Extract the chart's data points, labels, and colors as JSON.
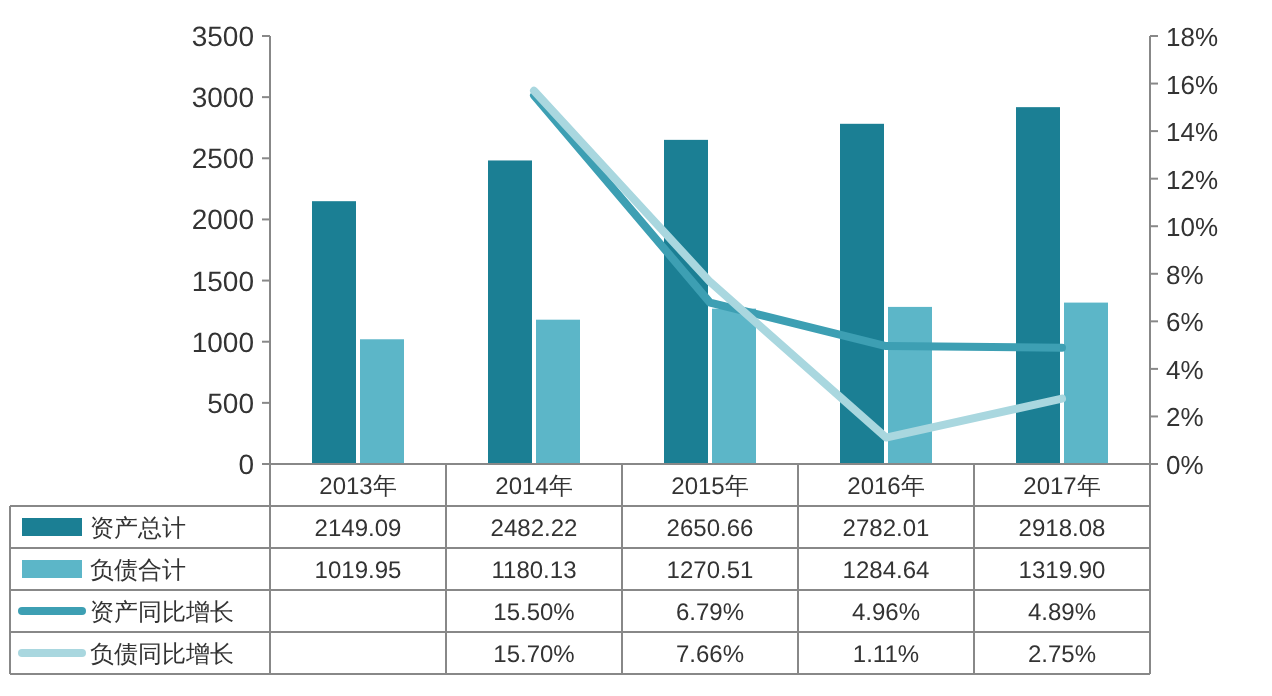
{
  "chart_data": {
    "type": "bar",
    "categories": [
      "2013年",
      "2014年",
      "2015年",
      "2016年",
      "2017年"
    ],
    "series": [
      {
        "name": "资产总计",
        "color": "#1b7f94",
        "values": [
          2149.09,
          2482.22,
          2650.66,
          2782.01,
          2918.08
        ],
        "value_labels": [
          "2149.09",
          "2482.22",
          "2650.66",
          "2782.01",
          "2918.08"
        ]
      },
      {
        "name": "负债合计",
        "color": "#5cb6c8",
        "values": [
          1019.95,
          1180.13,
          1270.51,
          1284.64,
          1319.9
        ],
        "value_labels": [
          "1019.95",
          "1180.13",
          "1270.51",
          "1284.64",
          "1319.90"
        ]
      },
      {
        "name": "资产同比增长",
        "type": "line",
        "axis": "y2",
        "color": "#3d9fb3",
        "values": [
          null,
          15.5,
          6.79,
          4.96,
          4.89
        ],
        "value_labels": [
          null,
          "15.50%",
          "6.79%",
          "4.96%",
          "4.89%"
        ]
      },
      {
        "name": "负债同比增长",
        "type": "line",
        "axis": "y2",
        "color": "#a9d7df",
        "values": [
          null,
          15.7,
          7.66,
          1.11,
          2.75
        ],
        "value_labels": [
          null,
          "15.70%",
          "7.66%",
          "1.11%",
          "2.75%"
        ]
      }
    ],
    "ylim": [
      0,
      3500
    ],
    "yticks": [
      0,
      500,
      1000,
      1500,
      2000,
      2500,
      3000,
      3500
    ],
    "y2lim": [
      0,
      18
    ],
    "y2ticks": [
      {
        "value": 0,
        "label": "0%"
      },
      {
        "value": 2,
        "label": "2%"
      },
      {
        "value": 4,
        "label": "4%"
      },
      {
        "value": 6,
        "label": "6%"
      },
      {
        "value": 8,
        "label": "8%"
      },
      {
        "value": 10,
        "label": "10%"
      },
      {
        "value": 12,
        "label": "12%"
      },
      {
        "value": 14,
        "label": "14%"
      },
      {
        "value": 16,
        "label": "16%"
      },
      {
        "value": 18,
        "label": "18%"
      }
    ],
    "legend": "bottom",
    "grid": false
  }
}
